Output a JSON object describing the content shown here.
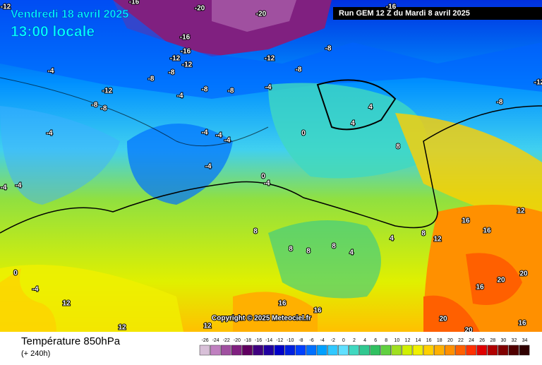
{
  "header": {
    "title": "Vendredi 18 avril 2025",
    "subtitle": "13:00 locale",
    "run": "Run GEM 12 Z du Mardi 8 avril 2025"
  },
  "footer": {
    "title": "Température 850hPa",
    "subtitle": "(+ 240h)",
    "copyright": "Copyright © 2025 Meteociel.fr"
  },
  "legend": {
    "ticks": [
      -26,
      -24,
      -22,
      -20,
      -18,
      -16,
      -14,
      -12,
      -10,
      -8,
      -6,
      -4,
      -2,
      0,
      2,
      4,
      6,
      8,
      10,
      12,
      14,
      16,
      18,
      20,
      22,
      24,
      26,
      28,
      30,
      32,
      34
    ],
    "colors": [
      "#d8c0d8",
      "#c080c0",
      "#a050a0",
      "#802080",
      "#600060",
      "#400080",
      "#2000a0",
      "#0000c8",
      "#0020e0",
      "#0040ff",
      "#0070ff",
      "#00a0ff",
      "#30c8ff",
      "#60e0ff",
      "#40d8c0",
      "#30c890",
      "#30c060",
      "#60d040",
      "#a0e020",
      "#d0f000",
      "#f0f000",
      "#ffd000",
      "#ffb000",
      "#ff9000",
      "#ff6000",
      "#ff3000",
      "#e00000",
      "#b00000",
      "#800000",
      "#500000",
      "#300000"
    ]
  },
  "map": {
    "contour_labels": [
      -16,
      -20,
      -20,
      -16,
      -16,
      -12,
      -12,
      -8,
      -12,
      -8,
      -8,
      -8,
      -4,
      -12,
      -8,
      -8,
      -4,
      -8,
      -8,
      -4,
      -4,
      -4,
      -4,
      -4,
      -4,
      0,
      0,
      -4,
      4,
      4,
      8,
      8,
      8,
      8,
      8,
      4,
      4,
      8,
      16,
      12,
      16,
      12,
      0,
      -4,
      12,
      12,
      12,
      16,
      16,
      20,
      20,
      16,
      20,
      20,
      16,
      -12,
      -4,
      -4,
      -12,
      -8,
      -16
    ]
  }
}
